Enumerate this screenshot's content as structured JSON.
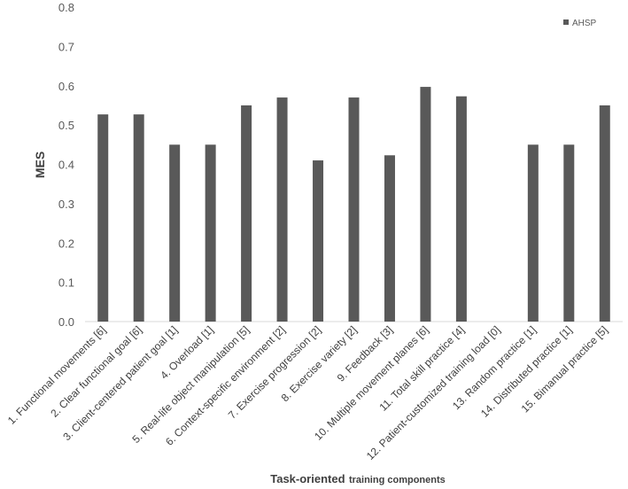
{
  "chart_data": {
    "type": "bar",
    "title": "",
    "ylabel": "MES",
    "xlabel": "Task-oriented training components",
    "xlabel_main": "Task-oriented",
    "xlabel_sub": "training components",
    "ylim": [
      0,
      0.8
    ],
    "yticks": [
      "0.0",
      "0.1",
      "0.2",
      "0.3",
      "0.4",
      "0.5",
      "0.6",
      "0.7",
      "0.8"
    ],
    "grid": false,
    "legend_position": "top-right",
    "categories": [
      "1. Functional movements [6]",
      "2. Clear functional goal [6]",
      "3. Client-centered patient goal [1]",
      "4. Overload [1]",
      "5. Real-life object manipulation [5]",
      "6. Context-specific environment [2]",
      "7. Exercise progression [2]",
      "8. Exercise variety [2]",
      "9. Feedback [3]",
      "10. Multiple movement planes [6]",
      "11. Total skill practice [4]",
      "12. Patient-customized training load [0]",
      "13. Random practice [1]",
      "14. Distributed practice [1]",
      "15. Bimanual practice [5]"
    ],
    "series": [
      {
        "name": "AHSP",
        "color": "#595959",
        "values": [
          0.527,
          0.527,
          0.45,
          0.45,
          0.55,
          0.57,
          0.41,
          0.57,
          0.423,
          0.597,
          0.573,
          null,
          0.45,
          0.45,
          0.55
        ]
      }
    ]
  }
}
